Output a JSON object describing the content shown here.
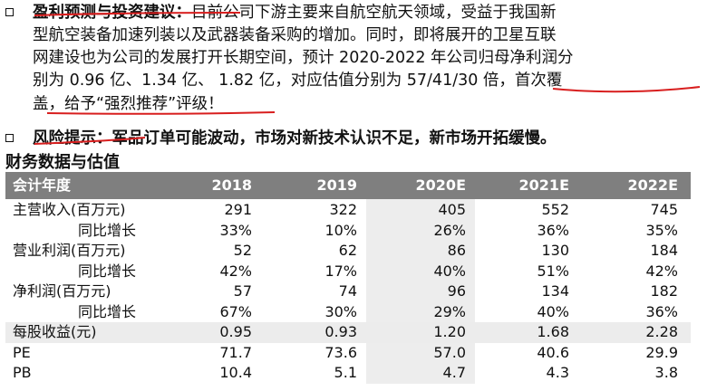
{
  "bullet1": {
    "heading": "盈利预测与投资建议：",
    "lines": [
      "目前公司下游主要来自航空航天领域，受益于我国新",
      "型航空装备加速列装以及武器装备采购的增加。同时，即将展开的卫星互联",
      "网建设也为公司的发展打开长期空间，预计 2020-2022 年公司归母净利润分",
      "别为 0.96 亿、1.34 亿、 1.82 亿，对应估值分别为 57/41/30 倍，首次覆",
      "盖，给予“强烈推荐”评级！"
    ]
  },
  "bullet2": {
    "heading": "风险提示：",
    "text": "军品订单可能波动，市场对新技术认识不足，新市场开拓缓慢。"
  },
  "table": {
    "title": "财务数据与估值",
    "header": [
      "会计年度",
      "2018",
      "2019",
      "2020E",
      "2021E",
      "2022E"
    ],
    "rows": [
      {
        "label": "主营收入(百万元)",
        "values": [
          "291",
          "322",
          "405",
          "552",
          "745"
        ]
      },
      {
        "label": "同比增长",
        "values": [
          "33%",
          "10%",
          "26%",
          "36%",
          "35%"
        ]
      },
      {
        "label": "营业利润(百万元)",
        "values": [
          "52",
          "62",
          "86",
          "130",
          "184"
        ]
      },
      {
        "label": "同比增长",
        "values": [
          "42%",
          "17%",
          "40%",
          "51%",
          "42%"
        ]
      },
      {
        "label": "净利润(百万元)",
        "values": [
          "57",
          "74",
          "96",
          "134",
          "182"
        ]
      },
      {
        "label": "同比增长",
        "values": [
          "67%",
          "30%",
          "29%",
          "40%",
          "36%"
        ]
      },
      {
        "label": "每股收益(元)",
        "values": [
          "0.95",
          "0.93",
          "1.20",
          "1.68",
          "2.28"
        ]
      },
      {
        "label": "PE",
        "values": [
          "71.7",
          "73.6",
          "57.0",
          "40.6",
          "29.9"
        ]
      },
      {
        "label": "PB",
        "values": [
          "10.4",
          "5.1",
          "4.7",
          "4.3",
          "3.8"
        ]
      }
    ]
  },
  "colors": {
    "header_bg": "#7f7f7f",
    "shade": "#ececec",
    "ink_red": "#d81e1e"
  }
}
